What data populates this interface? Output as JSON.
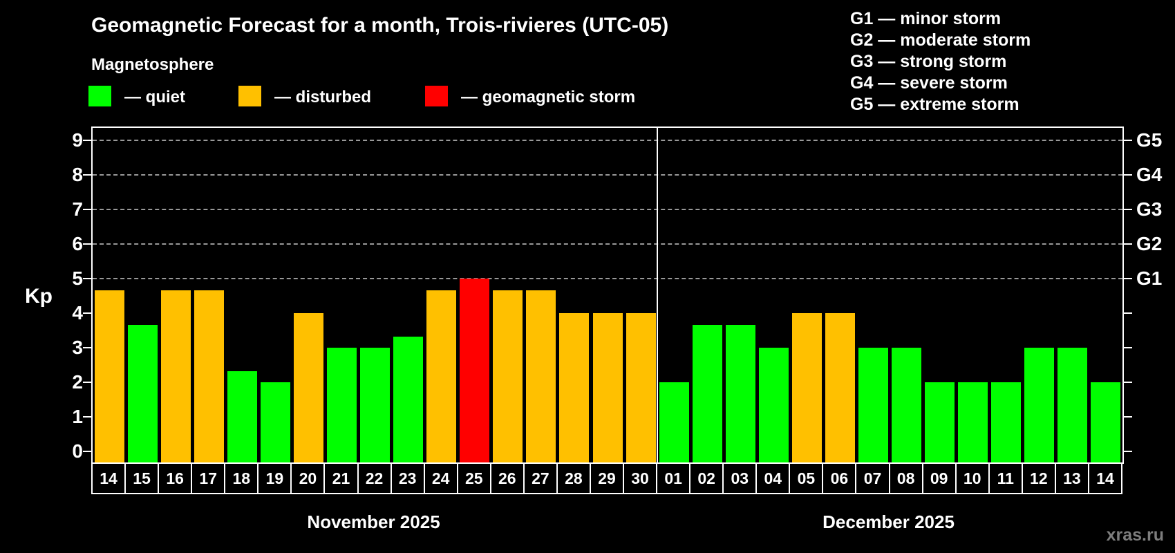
{
  "title": "Geomagnetic Forecast for a month, Trois-rivieres (UTC-05)",
  "subtitle": "Magnetosphere",
  "legend": {
    "items": [
      {
        "key": "quiet",
        "label": "— quiet",
        "color": "#00ff00"
      },
      {
        "key": "disturbed",
        "label": "— disturbed",
        "color": "#ffc000"
      },
      {
        "key": "storm",
        "label": "— geomagnetic storm",
        "color": "#ff0000"
      }
    ]
  },
  "g_scale_legend": [
    "G1 — minor storm",
    "G2 — moderate storm",
    "G3 — strong storm",
    "G4 — severe storm",
    "G5 — extreme storm"
  ],
  "watermark": "xras.ru",
  "chart_data": {
    "type": "bar",
    "title": "Geomagnetic Forecast for a month, Trois-rivieres (UTC-05)",
    "ylabel": "Kp",
    "ylim": [
      0,
      9.4
    ],
    "y_ticks": [
      0,
      1,
      2,
      3,
      4,
      5,
      6,
      7,
      8,
      9
    ],
    "gridlines_kp": [
      5,
      6,
      7,
      8,
      9
    ],
    "grid": "dashed horizontal at Kp 5-9",
    "right_axis_labels": [
      {
        "label": "G1",
        "kp": 5
      },
      {
        "label": "G2",
        "kp": 6
      },
      {
        "label": "G3",
        "kp": 7
      },
      {
        "label": "G4",
        "kp": 8
      },
      {
        "label": "G5",
        "kp": 9
      }
    ],
    "months": [
      {
        "label": "November 2025",
        "days": [
          {
            "day": "14",
            "kp": 4.67,
            "status": "disturbed"
          },
          {
            "day": "15",
            "kp": 3.67,
            "status": "quiet"
          },
          {
            "day": "16",
            "kp": 4.67,
            "status": "disturbed"
          },
          {
            "day": "17",
            "kp": 4.67,
            "status": "disturbed"
          },
          {
            "day": "18",
            "kp": 2.33,
            "status": "quiet"
          },
          {
            "day": "19",
            "kp": 2.0,
            "status": "quiet"
          },
          {
            "day": "20",
            "kp": 4.0,
            "status": "disturbed"
          },
          {
            "day": "21",
            "kp": 3.0,
            "status": "quiet"
          },
          {
            "day": "22",
            "kp": 3.0,
            "status": "quiet"
          },
          {
            "day": "23",
            "kp": 3.33,
            "status": "quiet"
          },
          {
            "day": "24",
            "kp": 4.67,
            "status": "disturbed"
          },
          {
            "day": "25",
            "kp": 5.0,
            "status": "storm"
          },
          {
            "day": "26",
            "kp": 4.67,
            "status": "disturbed"
          },
          {
            "day": "27",
            "kp": 4.67,
            "status": "disturbed"
          },
          {
            "day": "28",
            "kp": 4.0,
            "status": "disturbed"
          },
          {
            "day": "29",
            "kp": 4.0,
            "status": "disturbed"
          },
          {
            "day": "30",
            "kp": 4.0,
            "status": "disturbed"
          }
        ]
      },
      {
        "label": "December 2025",
        "days": [
          {
            "day": "01",
            "kp": 2.0,
            "status": "quiet"
          },
          {
            "day": "02",
            "kp": 3.67,
            "status": "quiet"
          },
          {
            "day": "03",
            "kp": 3.67,
            "status": "quiet"
          },
          {
            "day": "04",
            "kp": 3.0,
            "status": "quiet"
          },
          {
            "day": "05",
            "kp": 4.0,
            "status": "disturbed"
          },
          {
            "day": "06",
            "kp": 4.0,
            "status": "disturbed"
          },
          {
            "day": "07",
            "kp": 3.0,
            "status": "quiet"
          },
          {
            "day": "08",
            "kp": 3.0,
            "status": "quiet"
          },
          {
            "day": "09",
            "kp": 2.0,
            "status": "quiet"
          },
          {
            "day": "10",
            "kp": 2.0,
            "status": "quiet"
          },
          {
            "day": "11",
            "kp": 2.0,
            "status": "quiet"
          },
          {
            "day": "12",
            "kp": 3.0,
            "status": "quiet"
          },
          {
            "day": "13",
            "kp": 3.0,
            "status": "quiet"
          },
          {
            "day": "14",
            "kp": 2.0,
            "status": "quiet"
          }
        ]
      }
    ]
  }
}
